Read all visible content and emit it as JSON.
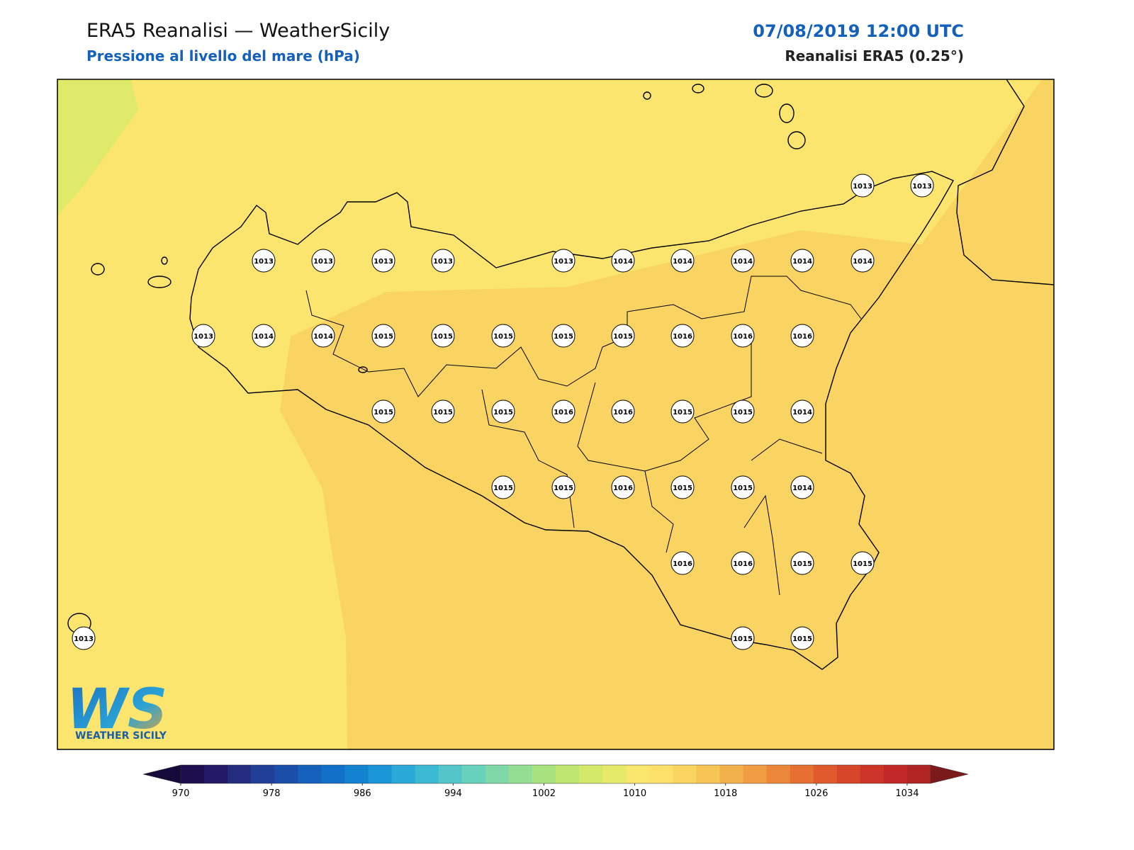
{
  "header": {
    "title": "ERA5 Reanalisi — WeatherSicily",
    "subtitle": "Pressione al livello del mare (hPa)",
    "date": "07/08/2019 12:00 UTC",
    "source": "Reanalisi ERA5 (0.25°)"
  },
  "stations": [
    1013,
    1013,
    1013,
    1013,
    1013,
    1014,
    1014,
    1014,
    1014,
    1014,
    1013,
    1013,
    1013,
    1014,
    1014,
    1015,
    1015,
    1015,
    1015,
    1015,
    1016,
    1016,
    1016,
    1015,
    1015,
    1015,
    1016,
    1016,
    1015,
    1015,
    1014,
    1015,
    1015,
    1016,
    1015,
    1015,
    1014,
    1016,
    1016,
    1015,
    1015,
    1013,
    1015,
    1015
  ],
  "colorbar": {
    "ticks": [
      970,
      978,
      986,
      994,
      1002,
      1010,
      1018,
      1026,
      1034
    ],
    "colors": [
      "#1e0e50",
      "#221a66",
      "#232c7e",
      "#203f96",
      "#1a4ea8",
      "#1560bb",
      "#1270c8",
      "#1282d1",
      "#1a95d8",
      "#2aa8d8",
      "#3dbad3",
      "#52c6c9",
      "#68d1bb",
      "#7fd8a8",
      "#94de93",
      "#a8e27f",
      "#bfe66f",
      "#d4e96a",
      "#e6ea6a",
      "#f8e66d",
      "#fce06a",
      "#f9d55f",
      "#f6c555",
      "#f3b14b",
      "#f09c42",
      "#ec873a",
      "#e67032",
      "#e05a2d",
      "#d84629",
      "#cd3428",
      "#c22827",
      "#b02424"
    ],
    "extend_colors": [
      "#160a3a",
      "#7a1a1a"
    ]
  },
  "logo": {
    "mark": "WS",
    "text": "WEATHER SICILY"
  }
}
